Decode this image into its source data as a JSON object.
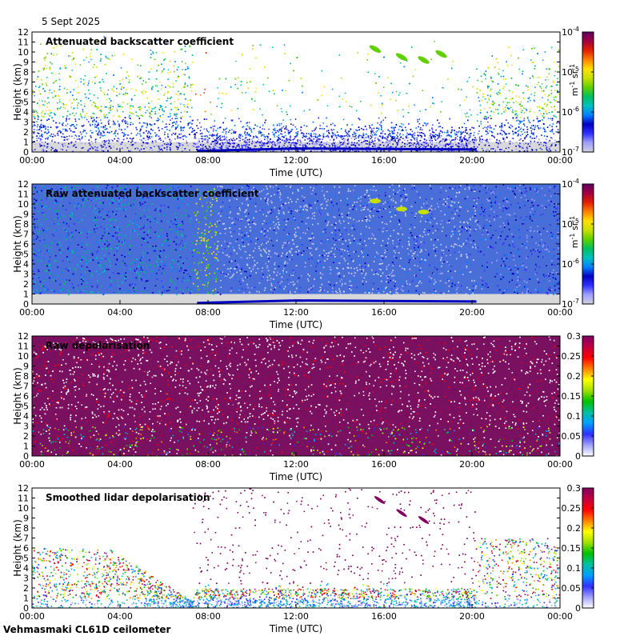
{
  "date": "5 Sept 2025",
  "site": "Vehmasmaki CL61D ceilometer",
  "colors": {
    "backscatter_scale": [
      "#cfcfdf",
      "#a0a0ff",
      "#3030ff",
      "#0000c0",
      "#0080ff",
      "#00c0c0",
      "#00c060",
      "#60d000",
      "#c8e000",
      "#ffe000",
      "#ff8000",
      "#e02000",
      "#a00040",
      "#600060"
    ],
    "depol_scale": [
      "#ffffff",
      "#a0a0ff",
      "#3030ff",
      "#00a0ff",
      "#00c0a0",
      "#00c000",
      "#a0e000",
      "#ffff00",
      "#ff8000",
      "#ff0000",
      "#c00040",
      "#800060"
    ],
    "background_band": "#d8d8d8"
  },
  "chart_data": [
    {
      "type": "heatmap",
      "title": "Attenuated backscatter coefficient",
      "xlabel": "Time (UTC)",
      "ylabel": "Height (km)",
      "x_ticks": [
        "00:00",
        "04:00",
        "08:00",
        "12:00",
        "16:00",
        "20:00",
        "00:00"
      ],
      "y_ticks": [
        "0",
        "1",
        "2",
        "3",
        "4",
        "5",
        "6",
        "7",
        "8",
        "9",
        "10",
        "11",
        "12"
      ],
      "ylim": [
        0,
        12
      ],
      "xlim_hours": [
        0,
        24
      ],
      "colorbar": {
        "scale": "log",
        "ticks": [
          "10-7",
          "10-6",
          "10-5",
          "10-4"
        ],
        "tick_bases": [
          "10",
          "10",
          "10",
          "10"
        ],
        "tick_exps": [
          "-7",
          "-6",
          "-5",
          "-4"
        ],
        "label_parts": [
          "m",
          "-1",
          " sr",
          "-1"
        ]
      }
    },
    {
      "type": "heatmap",
      "title": "Raw attenuated backscatter coefficient",
      "xlabel": "Time (UTC)",
      "ylabel": "Height (km)",
      "x_ticks": [
        "00:00",
        "04:00",
        "08:00",
        "12:00",
        "16:00",
        "20:00",
        "00:00"
      ],
      "y_ticks": [
        "0",
        "1",
        "2",
        "3",
        "4",
        "5",
        "6",
        "7",
        "8",
        "9",
        "10",
        "11",
        "12"
      ],
      "ylim": [
        0,
        12
      ],
      "xlim_hours": [
        0,
        24
      ],
      "colorbar": {
        "scale": "log",
        "ticks": [
          "10-7",
          "10-6",
          "10-5",
          "10-4"
        ],
        "tick_bases": [
          "10",
          "10",
          "10",
          "10"
        ],
        "tick_exps": [
          "-7",
          "-6",
          "-5",
          "-4"
        ],
        "label_parts": [
          "m",
          "-1",
          " sr",
          "-1"
        ]
      }
    },
    {
      "type": "heatmap",
      "title": "Raw depolarisation",
      "xlabel": "Time (UTC)",
      "ylabel": "Height (km)",
      "x_ticks": [
        "00:00",
        "04:00",
        "08:00",
        "12:00",
        "16:00",
        "20:00",
        "00:00"
      ],
      "y_ticks": [
        "0",
        "1",
        "2",
        "3",
        "4",
        "5",
        "6",
        "7",
        "8",
        "9",
        "10",
        "11",
        "12"
      ],
      "ylim": [
        0,
        12
      ],
      "xlim_hours": [
        0,
        24
      ],
      "colorbar": {
        "scale": "linear",
        "ticks": [
          "0",
          "0.05",
          "0.1",
          "0.15",
          "0.2",
          "0.25",
          "0.3"
        ]
      }
    },
    {
      "type": "heatmap",
      "title": "Smoothed lidar depolarisation",
      "xlabel": "Time (UTC)",
      "ylabel": "Height (km)",
      "x_ticks": [
        "00:00",
        "04:00",
        "08:00",
        "12:00",
        "16:00",
        "20:00",
        "00:00"
      ],
      "y_ticks": [
        "0",
        "1",
        "2",
        "3",
        "4",
        "5",
        "6",
        "7",
        "8",
        "9",
        "10",
        "11",
        "12"
      ],
      "ylim": [
        0,
        12
      ],
      "xlim_hours": [
        0,
        24
      ],
      "colorbar": {
        "scale": "linear",
        "ticks": [
          "0",
          "0.05",
          "0.1",
          "0.15",
          "0.2",
          "0.25",
          "0.3"
        ]
      }
    }
  ]
}
